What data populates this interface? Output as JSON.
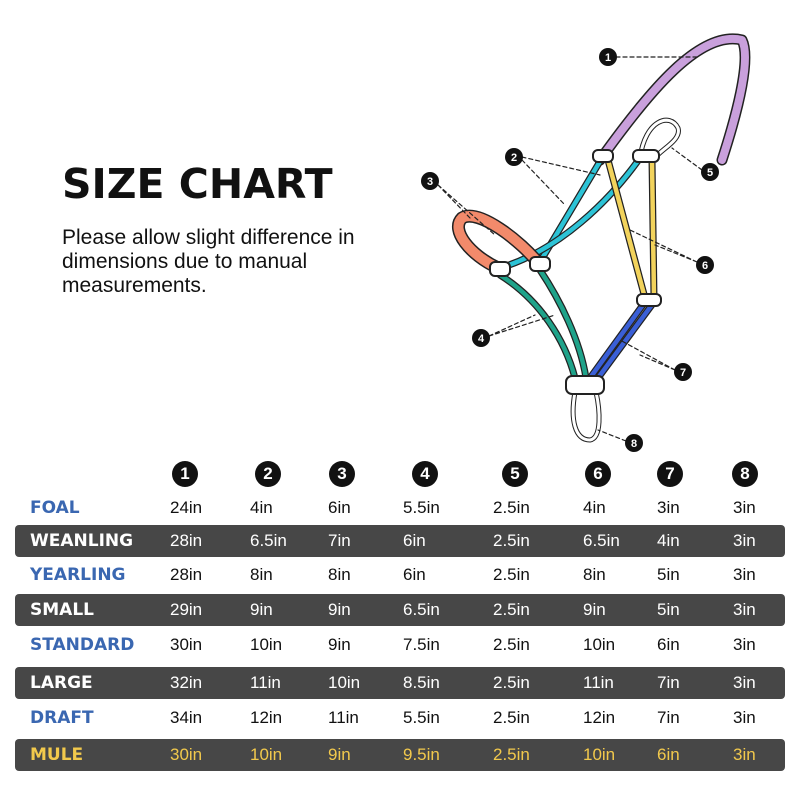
{
  "title": "SIZE CHART",
  "note": "Please allow slight difference in dimensions due to manual measurements.",
  "colors": {
    "label_blue": "#3a67b1",
    "dark_row": "#474747",
    "mule": "#f2c94c",
    "crown": "#c9a0dc",
    "cyan": "#2cc3d6",
    "noseband": "#f28a6b",
    "yellow": "#f2d35c",
    "green": "#1fa38a",
    "blue": "#3a5fd6"
  },
  "diagram_callouts": [
    "1",
    "2",
    "3",
    "4",
    "5",
    "6",
    "7",
    "8"
  ],
  "chart_data": {
    "type": "table",
    "columns": [
      "1",
      "2",
      "3",
      "4",
      "5",
      "6",
      "7",
      "8"
    ],
    "rows": [
      {
        "size": "FOAL",
        "values": [
          "24in",
          "4in",
          "6in",
          "5.5in",
          "2.5in",
          "4in",
          "3in",
          "3in"
        ]
      },
      {
        "size": "WEANLING",
        "values": [
          "28in",
          "6.5in",
          "7in",
          "6in",
          "2.5in",
          "6.5in",
          "4in",
          "3in"
        ]
      },
      {
        "size": "YEARLING",
        "values": [
          "28in",
          "8in",
          "8in",
          "6in",
          "2.5in",
          "8in",
          "5in",
          "3in"
        ]
      },
      {
        "size": "SMALL",
        "values": [
          "29in",
          "9in",
          "9in",
          "6.5in",
          "2.5in",
          "9in",
          "5in",
          "3in"
        ]
      },
      {
        "size": "STANDARD",
        "values": [
          "30in",
          "10in",
          "9in",
          "7.5in",
          "2.5in",
          "10in",
          "6in",
          "3in"
        ]
      },
      {
        "size": "LARGE",
        "values": [
          "32in",
          "11in",
          "10in",
          "8.5in",
          "2.5in",
          "11in",
          "7in",
          "3in"
        ]
      },
      {
        "size": "DRAFT",
        "values": [
          "34in",
          "12in",
          "11in",
          "5.5in",
          "2.5in",
          "12in",
          "7in",
          "3in"
        ]
      },
      {
        "size": "MULE",
        "values": [
          "30in",
          "10in",
          "9in",
          "9.5in",
          "2.5in",
          "10in",
          "6in",
          "3in"
        ]
      }
    ]
  }
}
